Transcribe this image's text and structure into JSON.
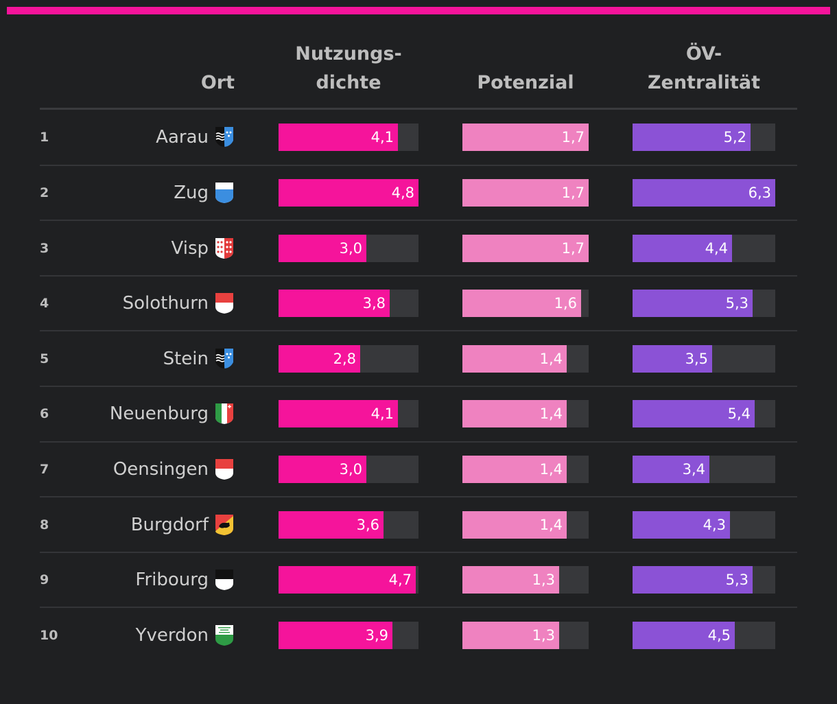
{
  "colors": {
    "accent_bar": "#f5149b",
    "nutzungsdichte": "#f5149b",
    "potenzial": "#ef82c0",
    "oev": "#8b52d6",
    "track": "#37383b"
  },
  "headers": {
    "ort": "Ort",
    "nutzungsdichte_line1": "Nutzungs-",
    "nutzungsdichte_line2": "dichte",
    "potenzial": "Potenzial",
    "oev_line1": "ÖV-",
    "oev_line2": "Zentralität"
  },
  "chart_data": {
    "type": "table",
    "columns": [
      "Ort",
      "Nutzungsdichte",
      "Potenzial",
      "ÖV-Zentralität"
    ],
    "scales": {
      "nutzungsdichte_max": 4.8,
      "potenzial_max": 1.7,
      "oev_max": 6.3
    },
    "rows": [
      {
        "rank": "1",
        "ort": "Aarau",
        "crest": "aargau",
        "nutz": 4.1,
        "nutz_label": "4,1",
        "pot": 1.7,
        "pot_label": "1,7",
        "oev": 5.2,
        "oev_label": "5,2"
      },
      {
        "rank": "2",
        "ort": "Zug",
        "crest": "zug",
        "nutz": 4.8,
        "nutz_label": "4,8",
        "pot": 1.7,
        "pot_label": "1,7",
        "oev": 6.3,
        "oev_label": "6,3"
      },
      {
        "rank": "3",
        "ort": "Visp",
        "crest": "wallis",
        "nutz": 3.0,
        "nutz_label": "3,0",
        "pot": 1.7,
        "pot_label": "1,7",
        "oev": 4.4,
        "oev_label": "4,4"
      },
      {
        "rank": "4",
        "ort": "Solothurn",
        "crest": "solothurn",
        "nutz": 3.8,
        "nutz_label": "3,8",
        "pot": 1.6,
        "pot_label": "1,6",
        "oev": 5.3,
        "oev_label": "5,3"
      },
      {
        "rank": "5",
        "ort": "Stein",
        "crest": "aargau",
        "nutz": 2.8,
        "nutz_label": "2,8",
        "pot": 1.4,
        "pot_label": "1,4",
        "oev": 3.5,
        "oev_label": "3,5"
      },
      {
        "rank": "6",
        "ort": "Neuenburg",
        "crest": "neuenburg",
        "nutz": 4.1,
        "nutz_label": "4,1",
        "pot": 1.4,
        "pot_label": "1,4",
        "oev": 5.4,
        "oev_label": "5,4"
      },
      {
        "rank": "7",
        "ort": "Oensingen",
        "crest": "solothurn",
        "nutz": 3.0,
        "nutz_label": "3,0",
        "pot": 1.4,
        "pot_label": "1,4",
        "oev": 3.4,
        "oev_label": "3,4"
      },
      {
        "rank": "8",
        "ort": "Burgdorf",
        "crest": "bern",
        "nutz": 3.6,
        "nutz_label": "3,6",
        "pot": 1.4,
        "pot_label": "1,4",
        "oev": 4.3,
        "oev_label": "4,3"
      },
      {
        "rank": "9",
        "ort": "Fribourg",
        "crest": "fribourg",
        "nutz": 4.7,
        "nutz_label": "4,7",
        "pot": 1.3,
        "pot_label": "1,3",
        "oev": 5.3,
        "oev_label": "5,3"
      },
      {
        "rank": "10",
        "ort": "Yverdon",
        "crest": "waadt",
        "nutz": 3.9,
        "nutz_label": "3,9",
        "pot": 1.3,
        "pot_label": "1,3",
        "oev": 4.5,
        "oev_label": "4,5"
      }
    ]
  }
}
